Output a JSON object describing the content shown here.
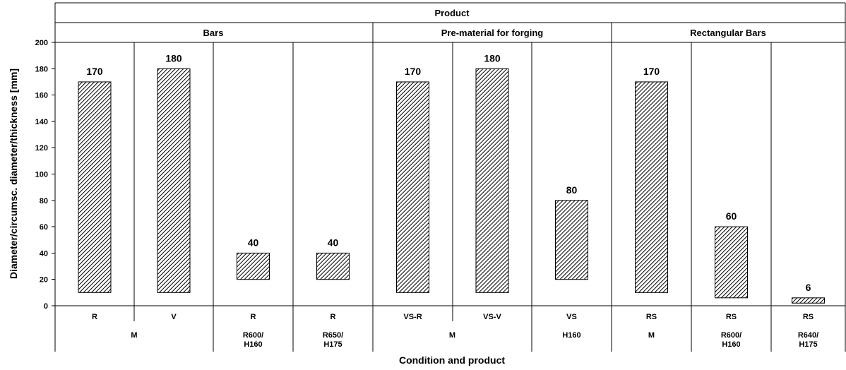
{
  "chart_data": {
    "type": "bar",
    "subtype": "floating-range",
    "title": "",
    "xlabel": "Condition and product",
    "ylabel": "Diameter/circumsc. diameter/thickness [mm]",
    "ylim": [
      0,
      200
    ],
    "yticks": [
      0,
      20,
      40,
      60,
      80,
      100,
      120,
      140,
      160,
      180,
      200
    ],
    "grid": false,
    "legend": "none",
    "bar_color": "#000000",
    "bar_fill": "diagonal-hatch",
    "header_top": "Product",
    "groups": [
      "Bars",
      "Pre-material for forging",
      "Rectangular Bars"
    ],
    "categories": [
      "R",
      "V",
      "R",
      "R",
      "VS-R",
      "VS-V",
      "VS",
      "RS",
      "RS",
      "RS"
    ],
    "condition_labels": [
      {
        "text": [
          "M"
        ],
        "span": [
          0,
          1
        ]
      },
      {
        "text": [
          "R600/",
          "H160"
        ],
        "span": [
          2,
          2
        ]
      },
      {
        "text": [
          "R650/",
          "H175"
        ],
        "span": [
          3,
          3
        ]
      },
      {
        "text": [
          "M"
        ],
        "span": [
          4,
          5
        ]
      },
      {
        "text": [
          "H160"
        ],
        "span": [
          6,
          6
        ]
      },
      {
        "text": [
          "M"
        ],
        "span": [
          7,
          7
        ]
      },
      {
        "text": [
          "R600/",
          "H160"
        ],
        "span": [
          8,
          8
        ]
      },
      {
        "text": [
          "R640/",
          "H175"
        ],
        "span": [
          9,
          9
        ]
      }
    ],
    "ranges": [
      {
        "min": 10,
        "max": 170
      },
      {
        "min": 10,
        "max": 180
      },
      {
        "min": 20,
        "max": 40
      },
      {
        "min": 20,
        "max": 40
      },
      {
        "min": 10,
        "max": 170
      },
      {
        "min": 10,
        "max": 180
      },
      {
        "min": 20,
        "max": 80
      },
      {
        "min": 10,
        "max": 170
      },
      {
        "min": 6,
        "max": 60
      },
      {
        "min": 2,
        "max": 6
      }
    ],
    "data_labels": [
      "170",
      "180",
      "40",
      "40",
      "170",
      "180",
      "80",
      "170",
      "60",
      "6"
    ]
  }
}
